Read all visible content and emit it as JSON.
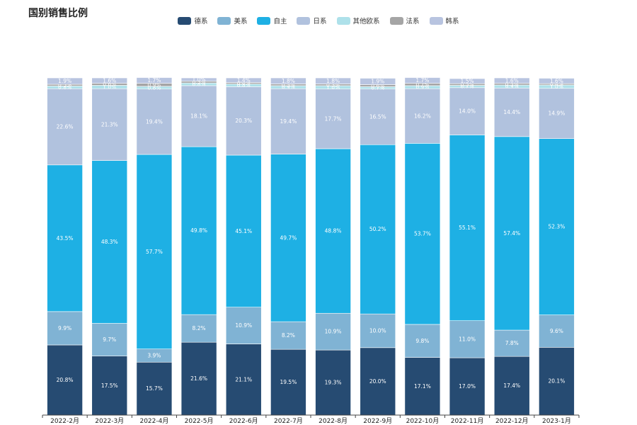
{
  "chart_data": {
    "type": "bar",
    "stacked": true,
    "title": "国别销售比例",
    "legend_position": "top-center",
    "categories": [
      "2022-2月",
      "2022-3月",
      "2022-4月",
      "2022-5月",
      "2022-6月",
      "2022-7月",
      "2022-8月",
      "2022-9月",
      "2022-10月",
      "2022-11月",
      "2022-12月",
      "2023-1月"
    ],
    "series": [
      {
        "name": "德系",
        "color": "#264b72",
        "values": [
          20.8,
          17.5,
          15.7,
          21.6,
          21.1,
          19.5,
          19.3,
          20.0,
          17.1,
          17.0,
          17.4,
          20.1
        ]
      },
      {
        "name": "美系",
        "color": "#80b3d4",
        "values": [
          9.9,
          9.7,
          3.9,
          8.2,
          10.9,
          8.2,
          10.9,
          10.0,
          9.8,
          11.0,
          7.8,
          9.6
        ]
      },
      {
        "name": "自主",
        "color": "#1eb0e4",
        "values": [
          43.5,
          48.3,
          57.7,
          49.8,
          45.1,
          49.7,
          48.8,
          50.2,
          53.7,
          55.1,
          57.4,
          52.3
        ]
      },
      {
        "name": "日系",
        "color": "#b1c2de",
        "values": [
          22.6,
          21.3,
          19.4,
          18.1,
          20.3,
          19.4,
          17.7,
          16.5,
          16.2,
          14.0,
          14.4,
          14.9
        ]
      },
      {
        "name": "其他欧系",
        "color": "#aee1ea",
        "values": [
          0.8,
          1.0,
          0.8,
          0.8,
          0.8,
          0.9,
          1.0,
          0.7,
          0.9,
          0.7,
          0.9,
          1.0
        ]
      },
      {
        "name": "法系",
        "color": "#a5a5a5",
        "values": [
          0.5,
          0.6,
          0.9,
          0.5,
          0.4,
          0.5,
          0.5,
          0.6,
          0.7,
          0.5,
          0.5,
          0.4
        ]
      },
      {
        "name": "韩系",
        "color": "#b8c4e0",
        "values": [
          1.9,
          1.6,
          1.7,
          1.0,
          1.4,
          1.8,
          1.8,
          1.9,
          1.7,
          1.5,
          1.6,
          1.6
        ]
      }
    ],
    "value_suffix": "%",
    "xlabel": "",
    "ylabel": "",
    "grid": false
  }
}
